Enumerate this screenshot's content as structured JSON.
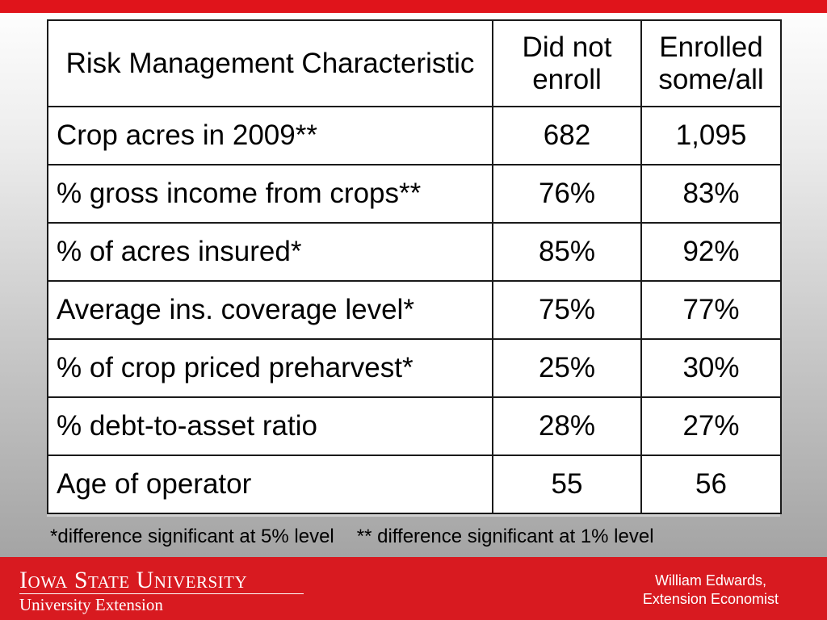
{
  "table": {
    "headers": [
      "Risk Management Characteristic",
      "Did not enroll",
      "Enrolled some/all"
    ],
    "rows": [
      {
        "label": "Crop acres in 2009**",
        "did_not_enroll": "682",
        "enrolled": "1,095"
      },
      {
        "label": "% gross income from crops**",
        "did_not_enroll": "76%",
        "enrolled": "83%"
      },
      {
        "label": "% of acres insured*",
        "did_not_enroll": "85%",
        "enrolled": "92%"
      },
      {
        "label": "Average ins. coverage level*",
        "did_not_enroll": "75%",
        "enrolled": "77%"
      },
      {
        "label": "% of crop priced preharvest*",
        "did_not_enroll": "25%",
        "enrolled": "30%"
      },
      {
        "label": "% debt-to-asset ratio",
        "did_not_enroll": "28%",
        "enrolled": "27%"
      },
      {
        "label": "Age of operator",
        "did_not_enroll": "55",
        "enrolled": "56"
      }
    ]
  },
  "footnotes": {
    "five_percent": "*difference significant at 5% level",
    "one_percent": "** difference significant at 1% level"
  },
  "footer": {
    "university": "Iowa State University",
    "unit": "University Extension",
    "author_name": "William Edwards,",
    "author_title": "Extension Economist"
  },
  "colors": {
    "brand_red": "#d81a20",
    "top_bar_red": "#e0141b",
    "text": "#000000"
  }
}
